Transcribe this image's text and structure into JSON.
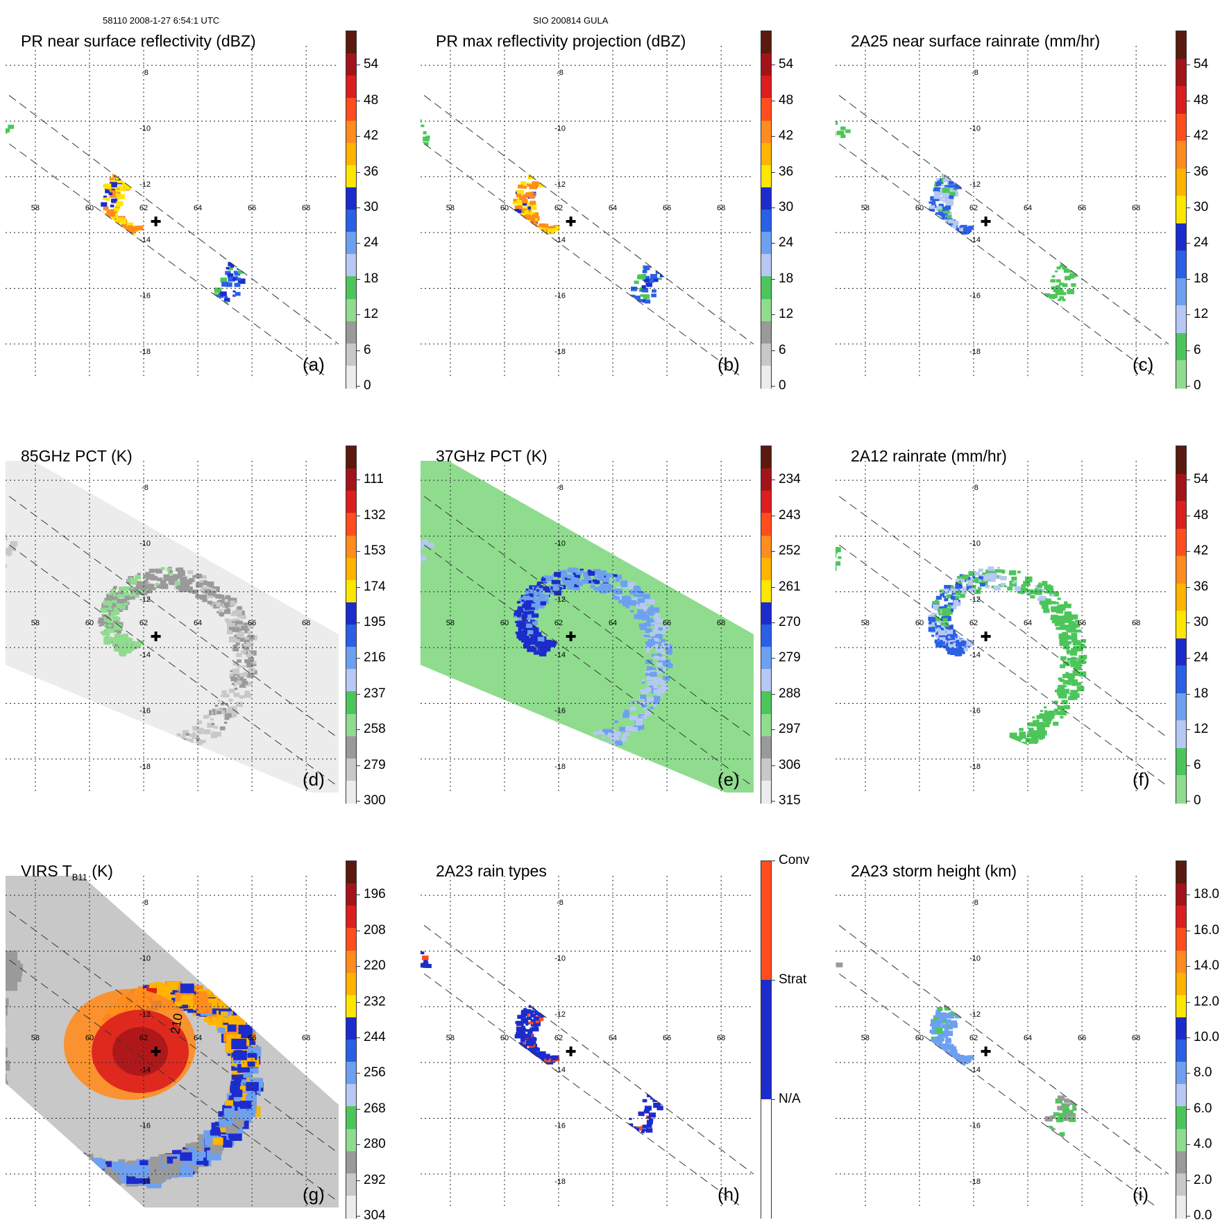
{
  "header": {
    "left": "58110 2008-1-27 6:54:1 UTC",
    "center": "SIO 200814 GULA"
  },
  "grid": {
    "lon_labels": [
      "58",
      "60",
      "62",
      "64",
      "66",
      "68"
    ],
    "lat_labels": [
      "-8",
      "-10",
      "-12",
      "-14",
      "-16",
      "-18"
    ]
  },
  "panels": [
    {
      "id": "a",
      "label": "(a)",
      "title": "PR near surface reflectivity (dBZ)",
      "ticks": [
        "54",
        "48",
        "42",
        "36",
        "30",
        "24",
        "18",
        "12",
        "6",
        "0"
      ],
      "palette": [
        "#5a1a10",
        "#a3141a",
        "#dc1e1e",
        "#ff4d1e",
        "#ff8c1e",
        "#ffb400",
        "#ffe600",
        "#1c2ccc",
        "#2a60e6",
        "#6ea0f0",
        "#b7c8f4",
        "#4cc65a",
        "#8fdc8f",
        "#9a9a9a",
        "#c8c8c8",
        "#ececec"
      ],
      "swath": "narrow",
      "intensity": "pr"
    },
    {
      "id": "b",
      "label": "(b)",
      "title": "PR max reflectivity projection (dBZ)",
      "ticks": [
        "54",
        "48",
        "42",
        "36",
        "30",
        "24",
        "18",
        "12",
        "6",
        "0"
      ],
      "palette": [
        "#5a1a10",
        "#a3141a",
        "#dc1e1e",
        "#ff4d1e",
        "#ff8c1e",
        "#ffb400",
        "#ffe600",
        "#1c2ccc",
        "#2a60e6",
        "#6ea0f0",
        "#b7c8f4",
        "#4cc65a",
        "#8fdc8f",
        "#9a9a9a",
        "#c8c8c8",
        "#ececec"
      ],
      "swath": "narrow",
      "intensity": "pr"
    },
    {
      "id": "c",
      "label": "(c)",
      "title": "2A25 near surface rainrate (mm/hr)",
      "ticks": [
        "54",
        "48",
        "42",
        "36",
        "30",
        "24",
        "18",
        "12",
        "6",
        "0"
      ],
      "palette": [
        "#5a1a10",
        "#a3141a",
        "#dc1e1e",
        "#ff4d1e",
        "#ff8c1e",
        "#ffb400",
        "#ffe600",
        "#1c2ccc",
        "#2a60e6",
        "#6ea0f0",
        "#b7c8f4",
        "#4cc65a",
        "#8fdc8f"
      ],
      "swath": "narrow",
      "intensity": "rain"
    },
    {
      "id": "d",
      "label": "(d)",
      "title": "85GHz PCT (K)",
      "ticks": [
        "111",
        "132",
        "153",
        "174",
        "195",
        "216",
        "237",
        "258",
        "279",
        "300"
      ],
      "palette": [
        "#5a1a10",
        "#a3141a",
        "#dc1e1e",
        "#ff4d1e",
        "#ff8c1e",
        "#ffb400",
        "#ffe600",
        "#1c2ccc",
        "#2a60e6",
        "#6ea0f0",
        "#b7c8f4",
        "#4cc65a",
        "#8fdc8f",
        "#9a9a9a",
        "#c8c8c8",
        "#ececec"
      ],
      "swath": "wide",
      "intensity": "pct85"
    },
    {
      "id": "e",
      "label": "(e)",
      "title": "37GHz PCT (K)",
      "ticks": [
        "234",
        "243",
        "252",
        "261",
        "270",
        "279",
        "288",
        "297",
        "306",
        "315"
      ],
      "palette": [
        "#5a1a10",
        "#a3141a",
        "#dc1e1e",
        "#ff4d1e",
        "#ff8c1e",
        "#ffb400",
        "#ffe600",
        "#1c2ccc",
        "#2a60e6",
        "#6ea0f0",
        "#b7c8f4",
        "#4cc65a",
        "#8fdc8f",
        "#9a9a9a",
        "#c8c8c8",
        "#ececec"
      ],
      "swath": "wide",
      "intensity": "pct37"
    },
    {
      "id": "f",
      "label": "(f)",
      "title": "2A12 rainrate (mm/hr)",
      "ticks": [
        "54",
        "48",
        "42",
        "36",
        "30",
        "24",
        "18",
        "12",
        "6",
        "0"
      ],
      "palette": [
        "#5a1a10",
        "#a3141a",
        "#dc1e1e",
        "#ff4d1e",
        "#ff8c1e",
        "#ffb400",
        "#ffe600",
        "#1c2ccc",
        "#2a60e6",
        "#6ea0f0",
        "#b7c8f4",
        "#4cc65a",
        "#8fdc8f"
      ],
      "swath": "wide",
      "intensity": "tmi_rain"
    },
    {
      "id": "g",
      "label": "(g)",
      "title": "VIRS T",
      "title_sub": "B11",
      "title_suffix": " (K)",
      "contour_label": "210",
      "ticks": [
        "196",
        "208",
        "220",
        "232",
        "244",
        "256",
        "268",
        "280",
        "292",
        "304"
      ],
      "palette": [
        "#5a1a10",
        "#a3141a",
        "#dc1e1e",
        "#ff4d1e",
        "#ff8c1e",
        "#ffb400",
        "#ffe600",
        "#1c2ccc",
        "#2a60e6",
        "#6ea0f0",
        "#b7c8f4",
        "#4cc65a",
        "#8fdc8f",
        "#9a9a9a",
        "#c8c8c8",
        "#ececec"
      ],
      "swath": "virs",
      "intensity": "virs"
    },
    {
      "id": "h",
      "label": "(h)",
      "title": "2A23 rain types",
      "ticks": [
        "Conv",
        "Strat",
        "N/A"
      ],
      "palette": [
        "#ff4d1e",
        "#1c2ccc",
        "#ffffff"
      ],
      "swath": "narrow",
      "intensity": "types"
    },
    {
      "id": "i",
      "label": "(i)",
      "title": "2A23 storm height (km)",
      "ticks": [
        "18.0",
        "16.0",
        "14.0",
        "12.0",
        "10.0",
        "8.0",
        "6.0",
        "4.0",
        "2.0",
        "0.0"
      ],
      "palette": [
        "#5a1a10",
        "#a3141a",
        "#dc1e1e",
        "#ff4d1e",
        "#ff8c1e",
        "#ffb400",
        "#ffe600",
        "#1c2ccc",
        "#2a60e6",
        "#6ea0f0",
        "#b7c8f4",
        "#4cc65a",
        "#8fdc8f",
        "#9a9a9a",
        "#c8c8c8",
        "#ececec"
      ],
      "swath": "narrow",
      "intensity": "height"
    }
  ]
}
